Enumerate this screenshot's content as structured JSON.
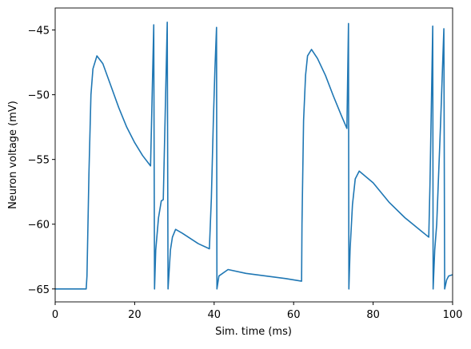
{
  "chart_data": {
    "type": "line",
    "xlabel": "Sim. time (ms)",
    "ylabel": "Neuron voltage (mV)",
    "xlim": [
      0,
      100
    ],
    "ylim": [
      -66,
      -43.3
    ],
    "xticks": [
      0,
      20,
      40,
      60,
      80,
      100
    ],
    "yticks": [
      {
        "value": -65,
        "label": "−65"
      },
      {
        "value": -60,
        "label": "−60"
      },
      {
        "value": -55,
        "label": "−55"
      },
      {
        "value": -50,
        "label": "−50"
      },
      {
        "value": -45,
        "label": "−45"
      }
    ],
    "grid": false,
    "series": [
      {
        "color": "#1f77b4",
        "x": [
          0,
          7.8,
          8,
          8.5,
          9,
          9.5,
          10.5,
          12,
          14,
          16,
          18,
          20,
          22,
          24,
          24.8,
          25,
          25.3,
          26,
          26.7,
          27.2,
          28.2,
          28.4,
          29,
          29.5,
          30.3,
          32,
          34,
          36,
          38.8,
          39.3,
          39.8,
          40.2,
          40.6,
          40.7,
          41.2,
          43.5,
          48,
          53,
          58,
          62,
          62.1,
          62.5,
          63,
          63.5,
          64.5,
          66,
          68,
          70,
          72,
          73.4,
          73.8,
          73.9,
          74.2,
          74.8,
          75.5,
          76.5,
          80,
          84,
          88,
          92,
          94,
          94.3,
          94.7,
          95,
          95.1,
          95.5,
          96,
          97,
          97.8,
          98,
          98.5,
          99,
          100
        ],
        "values": [
          -65,
          -65,
          -64,
          -56,
          -50,
          -48,
          -47,
          -47.6,
          -49.3,
          -51,
          -52.5,
          -53.7,
          -54.7,
          -55.5,
          -44.6,
          -65,
          -62,
          -59.5,
          -58.2,
          -58.1,
          -44.4,
          -65,
          -62,
          -61,
          -60.4,
          -60.7,
          -61.1,
          -61.5,
          -61.9,
          -58,
          -52,
          -48,
          -44.8,
          -65,
          -64,
          -63.5,
          -63.8,
          -64,
          -64.2,
          -64.4,
          -60,
          -52,
          -48.5,
          -47,
          -46.5,
          -47.2,
          -48.5,
          -50.1,
          -51.6,
          -52.6,
          -44.5,
          -65,
          -62,
          -58.5,
          -56.5,
          -55.9,
          -56.8,
          -58.3,
          -59.5,
          -60.5,
          -61,
          -57,
          -50,
          -44.7,
          -65,
          -62,
          -60,
          -52,
          -44.9,
          -65,
          -64.3,
          -64,
          -63.9
        ]
      }
    ]
  }
}
